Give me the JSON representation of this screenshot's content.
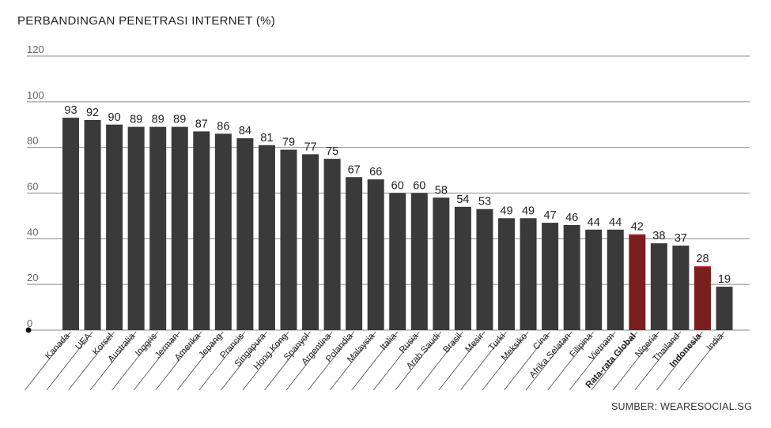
{
  "chart_data": {
    "type": "bar",
    "title": "PERBANDINGAN PENETRASI INTERNET (%)",
    "source": "SUMBER: WEARESOCIAL.SG",
    "ylim": [
      0,
      120
    ],
    "yticks": [
      "0",
      "20",
      "40",
      "60",
      "80",
      "100",
      "120"
    ],
    "grid": true,
    "categories": [
      "Kanada",
      "UEA",
      "Korsel",
      "Australia",
      "Inggris",
      "Jerman",
      "Amerika",
      "Jepang",
      "Prancis",
      "Singapura",
      "Hong Kong",
      "Spanyol",
      "Argentina",
      "Polandia",
      "Malaysia",
      "Italia",
      "Rusia",
      "Arab Saudi",
      "Brasil",
      "Mesir",
      "Turki",
      "Meksiko",
      "Cina",
      "Afrika Selatan",
      "Filipina",
      "Vietnam",
      "Rata-rata Global",
      "Nigeria",
      "Thailand",
      "Indonesia",
      "India"
    ],
    "values": [
      93,
      92,
      90,
      89,
      89,
      89,
      87,
      86,
      84,
      81,
      79,
      77,
      75,
      67,
      66,
      60,
      60,
      58,
      54,
      53,
      49,
      49,
      47,
      46,
      44,
      44,
      42,
      38,
      37,
      28,
      19
    ],
    "highlighted": [
      "Rata-rata Global",
      "Indonesia"
    ],
    "colors": {
      "bar": "#3a3a3a",
      "highlight": "#7b1e1e",
      "grid": "#8a8a8a",
      "text": "#222222"
    }
  }
}
